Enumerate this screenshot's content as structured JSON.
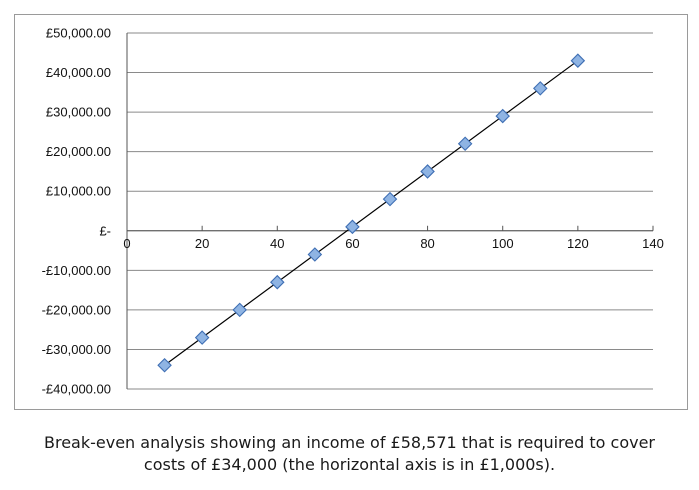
{
  "chart_data": {
    "type": "scatter",
    "title": "",
    "xlabel": "",
    "ylabel": "",
    "xlim": [
      0,
      140
    ],
    "ylim": [
      -40000,
      50000
    ],
    "x_ticks": [
      0,
      20,
      40,
      60,
      80,
      100,
      120,
      140
    ],
    "x_tick_labels": [
      "0",
      "20",
      "40",
      "60",
      "80",
      "100",
      "120",
      "140"
    ],
    "y_ticks": [
      50000,
      40000,
      30000,
      20000,
      10000,
      0,
      -10000,
      -20000,
      -30000,
      -40000
    ],
    "y_tick_labels": [
      "£50,000.00",
      "£40,000.00",
      "£30,000.00",
      "£20,000.00",
      "£10,000.00",
      "£-",
      "-£10,000.00",
      "-£20,000.00",
      "-£30,000.00",
      "-£40,000.00"
    ],
    "grid": "horizontal",
    "series": [
      {
        "type": "scatter",
        "marker": "diamond",
        "color": "#8fb4e3",
        "x": [
          10,
          20,
          30,
          40,
          50,
          60,
          70,
          80,
          90,
          100,
          110,
          120
        ],
        "y": [
          -34000,
          -27000,
          -20000,
          -13000,
          -6000,
          1000,
          8000,
          15000,
          22000,
          29000,
          36000,
          43000
        ]
      },
      {
        "type": "line",
        "color": "#000000",
        "x": [
          10,
          120
        ],
        "y": [
          -34000,
          43000
        ]
      }
    ]
  },
  "caption": {
    "line1": "Break-even analysis showing an income of £58,571 that is required to cover",
    "line2": "costs of £34,000 (the horizontal axis is in £1,000s)."
  }
}
